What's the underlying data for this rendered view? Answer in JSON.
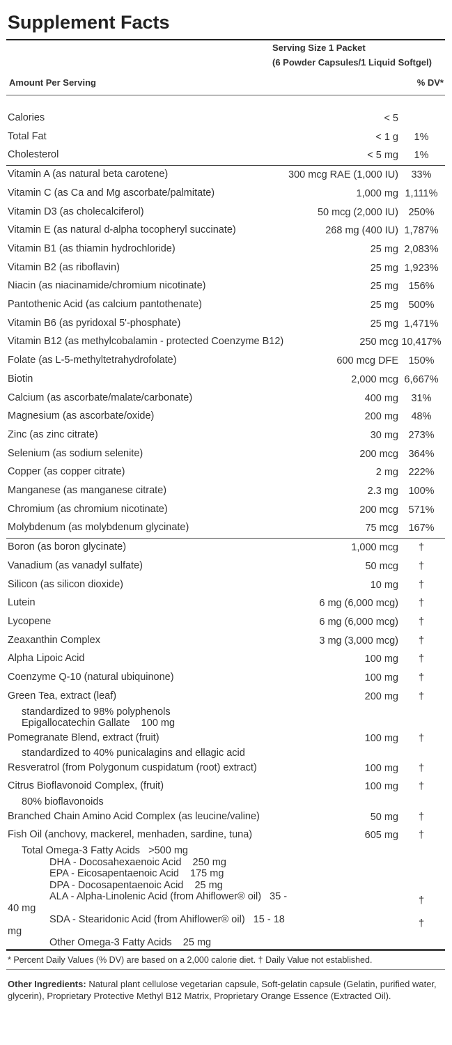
{
  "title": "Supplement Facts",
  "serving": [
    "Serving Size 1 Packet",
    "(6 Powder Capsules/1 Liquid Softgel)"
  ],
  "header": {
    "amount": "Amount Per Serving",
    "dv": "% DV*"
  },
  "sections": [
    {
      "rows": [
        {
          "name": "Calories",
          "amount": "< 5"
        },
        {
          "name": "Total Fat",
          "amount": "< 1 g",
          "dv": "1%"
        },
        {
          "name": "Cholesterol",
          "amount": "< 5 mg",
          "dv": "1%"
        }
      ]
    },
    {
      "rows": [
        {
          "name": "Vitamin A (as natural beta carotene)",
          "amount": "300 mcg RAE (1,000 IU)",
          "dv": "33%"
        },
        {
          "name": "Vitamin C (as Ca and Mg ascorbate/palmitate)",
          "amount": "1,000 mg",
          "dv": "1,111%"
        },
        {
          "name": "Vitamin D3 (as cholecalciferol)",
          "amount": "50 mcg (2,000 IU)",
          "dv": "250%"
        },
        {
          "name": "Vitamin E (as natural d-alpha tocopheryl succinate)",
          "amount": "268 mg (400 IU)",
          "dv": "1,787%"
        },
        {
          "name": "Vitamin B1 (as thiamin hydrochloride)",
          "amount": "25 mg",
          "dv": "2,083%"
        },
        {
          "name": "Vitamin B2 (as riboflavin)",
          "amount": "25 mg",
          "dv": "1,923%"
        },
        {
          "name": "Niacin (as niacinamide/chromium nicotinate)",
          "amount": "25 mg",
          "dv": "156%"
        },
        {
          "name": "Pantothenic Acid (as calcium pantothenate)",
          "amount": "25 mg",
          "dv": "500%"
        },
        {
          "name": "Vitamin B6 (as pyridoxal 5'-phosphate)",
          "amount": "25 mg",
          "dv": "1,471%"
        },
        {
          "name": "Vitamin B12 (as methylcobalamin - protected Coenzyme B12)",
          "amount": "250 mcg",
          "dv": "10,417%"
        },
        {
          "name": "Folate (as L-5-methyltetrahydrofolate)",
          "amount": "600 mcg DFE",
          "dv": "150%"
        },
        {
          "name": "Biotin",
          "amount": "2,000 mcg",
          "dv": "6,667%"
        },
        {
          "name": "Calcium (as ascorbate/malate/carbonate)",
          "amount": "400 mg",
          "dv": "31%"
        },
        {
          "name": "Magnesium (as ascorbate/oxide)",
          "amount": "200 mg",
          "dv": "48%"
        },
        {
          "name": "Zinc (as zinc citrate)",
          "amount": "30 mg",
          "dv": "273%"
        },
        {
          "name": "Selenium (as sodium selenite)",
          "amount": "200 mcg",
          "dv": "364%"
        },
        {
          "name": "Copper (as copper citrate)",
          "amount": "2 mg",
          "dv": "222%"
        },
        {
          "name": "Manganese (as manganese citrate)",
          "amount": "2.3 mg",
          "dv": "100%"
        },
        {
          "name": "Chromium (as chromium nicotinate)",
          "amount": "200 mcg",
          "dv": "571%"
        },
        {
          "name": "Molybdenum (as molybdenum glycinate)",
          "amount": "75 mcg",
          "dv": "167%"
        }
      ]
    },
    {
      "rows": [
        {
          "name": "Boron (as boron glycinate)",
          "amount": "1,000 mcg",
          "dv": "†"
        },
        {
          "name": "Vanadium (as vanadyl sulfate)",
          "amount": "50 mcg",
          "dv": "†"
        },
        {
          "name": "Silicon (as silicon dioxide)",
          "amount": "10 mg",
          "dv": "†"
        },
        {
          "name": "Lutein",
          "amount": "6 mg (6,000 mcg)",
          "dv": "†"
        },
        {
          "name": "Lycopene",
          "amount": "6 mg (6,000 mcg)",
          "dv": "†"
        },
        {
          "name": "Zeaxanthin Complex",
          "amount": "3 mg (3,000 mcg)",
          "dv": "†"
        },
        {
          "name": "Alpha Lipoic Acid",
          "amount": "100 mg",
          "dv": "†"
        },
        {
          "name": "Coenzyme Q-10 (natural ubiquinone)",
          "amount": "100 mg",
          "dv": "†"
        },
        {
          "name": "Green Tea, extract (leaf)",
          "amount": "200 mg",
          "dv": "†",
          "sub": [
            {
              "text": "standardized to 98% polyphenols"
            },
            {
              "text": "Epigallocatechin Gallate    100 mg"
            }
          ]
        },
        {
          "name": "Pomegranate Blend, extract (fruit)",
          "amount": "100 mg",
          "dv": "†",
          "sub": [
            {
              "text": "standardized to 40% punicalagins and ellagic acid"
            }
          ]
        },
        {
          "name": "Resveratrol (from Polygonum cuspidatum (root) extract)",
          "amount": "100 mg",
          "dv": "†"
        },
        {
          "name": "Citrus Bioflavonoid Complex, (fruit)",
          "amount": "100 mg",
          "dv": "†",
          "sub": [
            {
              "text": "80% bioflavonoids"
            }
          ]
        },
        {
          "name": "Branched Chain Amino Acid Complex (as leucine/valine)",
          "amount": "50 mg",
          "dv": "†"
        },
        {
          "name": "Fish Oil (anchovy, mackerel, menhaden, sardine, tuna)",
          "amount": "605 mg",
          "dv": "†",
          "sub": [
            {
              "text": "Total Omega-3 Fatty Acids   >500 mg",
              "sub": [
                {
                  "text": "DHA - Docosahexaenoic Acid    250 mg"
                },
                {
                  "text": "EPA - Eicosapentaenoic Acid    175 mg"
                },
                {
                  "text": "DPA - Docosapentaenoic Acid    25 mg"
                },
                {
                  "text": "ALA - Alpha-Linolenic Acid (from Ahiflower® oil)   35 - 40 mg",
                  "dv": "†"
                },
                {
                  "text": "SDA - Stearidonic Acid (from Ahiflower® oil)   15 - 18 mg",
                  "dv": "†"
                },
                {
                  "text": "Other Omega-3 Fatty Acids    25 mg"
                }
              ]
            }
          ]
        }
      ]
    }
  ],
  "footnote": "* Percent Daily Values (% DV) are based on a 2,000 calorie diet. † Daily Value not established.",
  "other_ingredients": {
    "label": "Other Ingredients:",
    "text": "Natural plant cellulose vegetarian capsule, Soft-gelatin capsule (Gelatin, purified water, glycerin), Proprietary Protective Methyl B12 Matrix, Proprietary Orange Essence (Extracted Oil)."
  }
}
